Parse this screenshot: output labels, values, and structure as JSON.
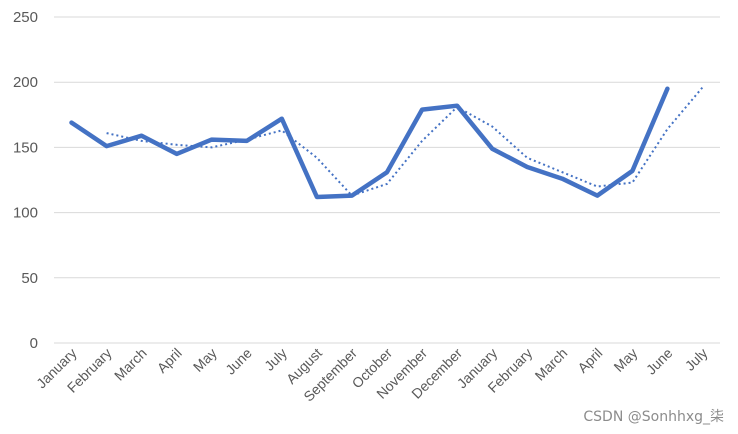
{
  "chart_data": {
    "type": "line",
    "title": "",
    "xlabel": "",
    "ylabel": "",
    "categories": [
      "January",
      "February",
      "March",
      "April",
      "May",
      "June",
      "July",
      "August",
      "September",
      "October",
      "November",
      "December",
      "January",
      "February",
      "March",
      "April",
      "May",
      "June",
      "July"
    ],
    "ylim": [
      0,
      250
    ],
    "yticks": [
      0,
      50,
      100,
      150,
      200,
      250
    ],
    "grid": true,
    "legend": "none",
    "series": [
      {
        "style": "solid",
        "color": "#4472c4",
        "values": [
          169,
          151,
          159,
          145,
          156,
          155,
          172,
          112,
          113,
          131,
          179,
          182,
          149,
          135,
          126,
          113,
          132,
          195,
          null
        ]
      },
      {
        "style": "dotted",
        "color": "#4472c4",
        "values": [
          null,
          161,
          155,
          152,
          150,
          156,
          163,
          142,
          113,
          122,
          155,
          181,
          166,
          142,
          131,
          120,
          123,
          164,
          196
        ]
      }
    ]
  },
  "watermark": "CSDN @Sonhhxg_柒"
}
